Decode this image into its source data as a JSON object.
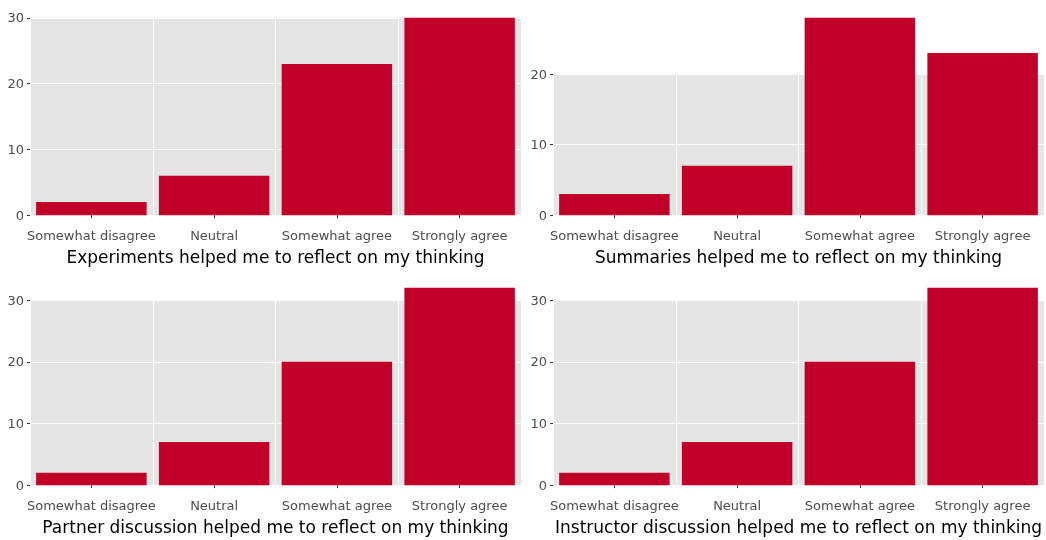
{
  "chart_data": [
    {
      "type": "bar",
      "xlabel": "Experiments helped me to reflect on my thinking",
      "categories": [
        "Somewhat disagree",
        "Neutral",
        "Somewhat agree",
        "Strongly agree"
      ],
      "values": [
        2,
        6,
        23,
        30
      ],
      "color": "#c00028",
      "ylim": [
        -1.5,
        31.5
      ],
      "yticks": [
        0,
        10,
        20,
        30
      ],
      "grid": true
    },
    {
      "type": "bar",
      "xlabel": "Summaries helped me to reflect on my thinking",
      "categories": [
        "Somewhat disagree",
        "Neutral",
        "Somewhat agree",
        "Strongly agree"
      ],
      "values": [
        3,
        7,
        28,
        23
      ],
      "color": "#c00028",
      "ylim": [
        -1.4,
        29.4
      ],
      "yticks": [
        0,
        10,
        20
      ],
      "grid": true
    },
    {
      "type": "bar",
      "xlabel": "Partner discussion helped me to reflect on my thinking",
      "categories": [
        "Somewhat disagree",
        "Neutral",
        "Somewhat agree",
        "Strongly agree"
      ],
      "values": [
        2,
        7,
        20,
        32
      ],
      "color": "#c00028",
      "ylim": [
        -1.6,
        33.6
      ],
      "yticks": [
        0,
        10,
        20,
        30
      ],
      "grid": true
    },
    {
      "type": "bar",
      "xlabel": "Instructor discussion helped me to reflect on my thinking",
      "categories": [
        "Somewhat disagree",
        "Neutral",
        "Somewhat agree",
        "Strongly agree"
      ],
      "values": [
        2,
        7,
        20,
        32
      ],
      "color": "#c00028",
      "ylim": [
        -1.6,
        33.6
      ],
      "yticks": [
        0,
        10,
        20,
        30
      ],
      "grid": true
    }
  ]
}
